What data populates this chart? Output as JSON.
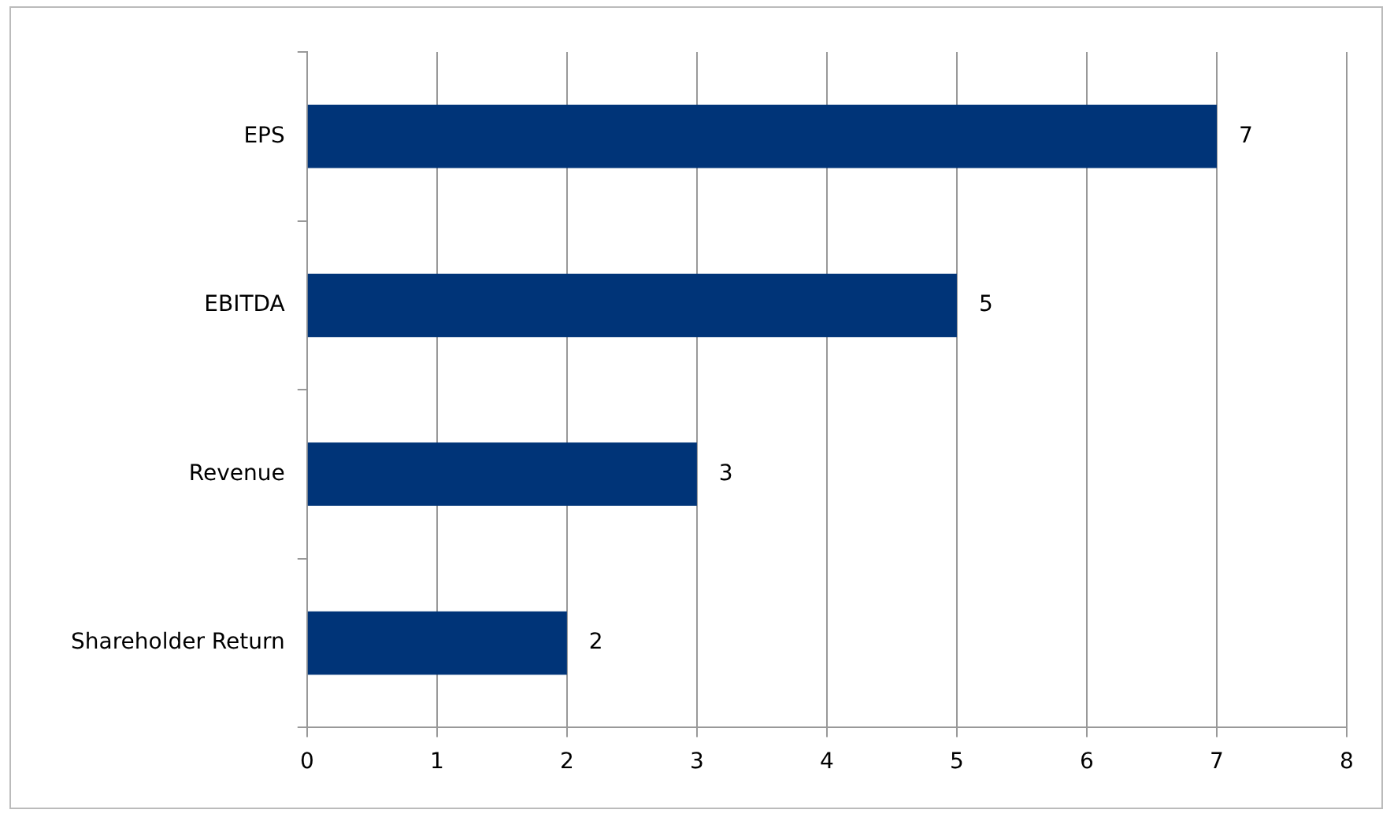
{
  "chart_data": {
    "type": "bar",
    "orientation": "horizontal",
    "categories": [
      "EPS",
      "EBITDA",
      "Revenue",
      "Shareholder Return"
    ],
    "values": [
      7,
      5,
      3,
      2
    ],
    "color": "#003478",
    "xlim": [
      0,
      8
    ],
    "xticks": [
      0,
      1,
      2,
      3,
      4,
      5,
      6,
      7,
      8
    ],
    "grid": "x",
    "data_labels": true
  }
}
